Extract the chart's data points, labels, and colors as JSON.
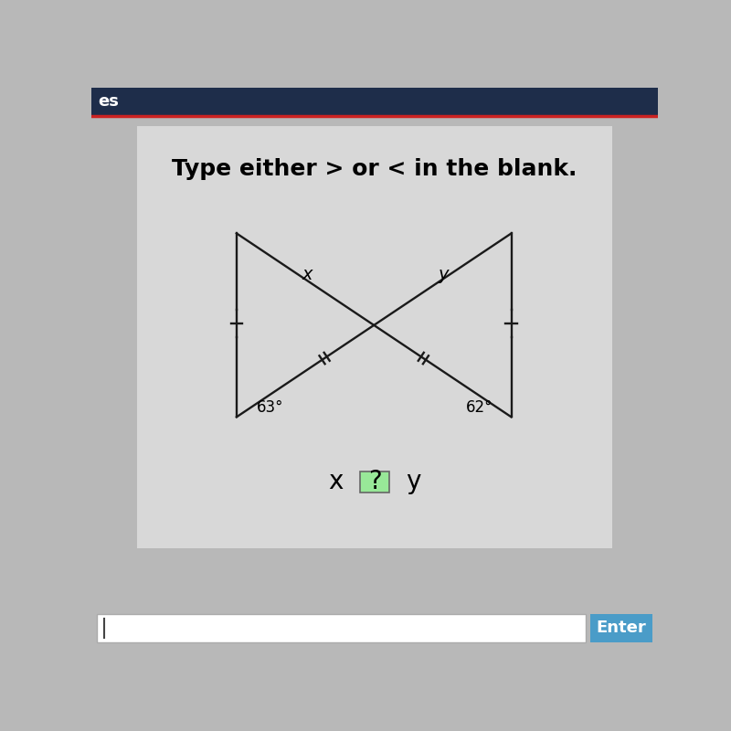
{
  "title_text": "Type either > or < in the blank.",
  "header_text": "es",
  "header_bg": "#1e2d4a",
  "bg_color": "#b8b8b8",
  "inner_bg": "#dcdcdc",
  "angle_left": "63°",
  "angle_right": "62°",
  "label_x": "x",
  "label_y": "y",
  "enter_button_color": "#4a9cc8",
  "enter_text": "Enter",
  "title_fontsize": 18,
  "diagram_line_color": "#1a1a1a",
  "separator_color": "#cc2222"
}
